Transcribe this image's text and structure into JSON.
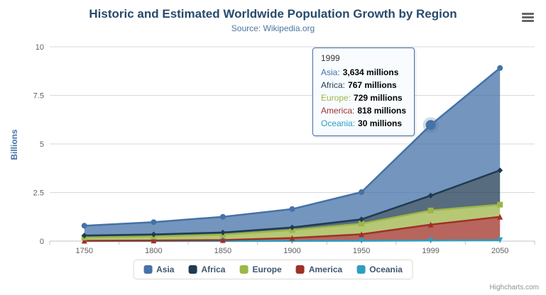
{
  "chart_data": {
    "type": "area",
    "stacking": "normal",
    "title": "Historic and Estimated Worldwide Population Growth by Region",
    "subtitle": "Source: Wikipedia.org",
    "categories": [
      "1750",
      "1800",
      "1850",
      "1900",
      "1950",
      "1999",
      "2050"
    ],
    "xlabel": "",
    "ylabel": "Billions",
    "ylim": [
      0,
      10
    ],
    "y_ticks": [
      0,
      2.5,
      5,
      7.5,
      10
    ],
    "values_unit": "millions",
    "grid": true,
    "legend_position": "bottom-center",
    "series": [
      {
        "name": "Asia",
        "color": "#4572A7",
        "marker": "circle",
        "values": [
          502,
          635,
          809,
          947,
          1402,
          3634,
          5268
        ]
      },
      {
        "name": "Africa",
        "color": "#1F3B53",
        "marker": "diamond",
        "values": [
          106,
          107,
          111,
          133,
          221,
          767,
          1766
        ]
      },
      {
        "name": "Europe",
        "color": "#9DB648",
        "marker": "square",
        "values": [
          163,
          203,
          276,
          408,
          547,
          729,
          628
        ]
      },
      {
        "name": "America",
        "color": "#9F3127",
        "marker": "triangle",
        "values": [
          18,
          31,
          54,
          156,
          339,
          818,
          1201
        ]
      },
      {
        "name": "Oceania",
        "color": "#2E9EC0",
        "marker": "triangle-down",
        "values": [
          2,
          2,
          2,
          6,
          13,
          30,
          46
        ]
      }
    ],
    "hover": {
      "series_index": 0,
      "point_index": 5
    }
  },
  "tooltip": {
    "x": "1999",
    "rows": [
      {
        "label": "Asia:",
        "value": "3,634 millions"
      },
      {
        "label": "Africa:",
        "value": "767 millions"
      },
      {
        "label": "Europe:",
        "value": "729 millions"
      },
      {
        "label": "America:",
        "value": "818 millions"
      },
      {
        "label": "Oceania:",
        "value": "30 millions"
      }
    ]
  },
  "legend": {
    "items": [
      {
        "label": "Asia"
      },
      {
        "label": "Africa"
      },
      {
        "label": "Europe"
      },
      {
        "label": "America"
      },
      {
        "label": "Oceania"
      }
    ]
  },
  "credits": {
    "label": "Highcharts.com"
  }
}
